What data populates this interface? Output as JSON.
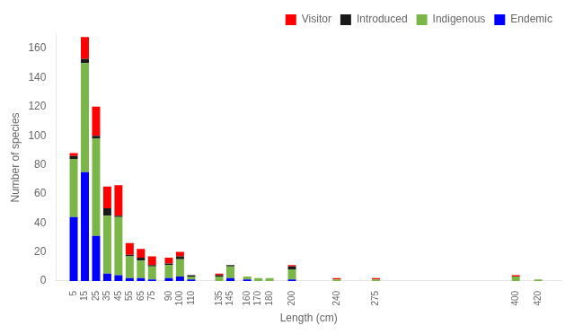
{
  "chart_data": {
    "type": "bar",
    "stacked": true,
    "x": [
      5,
      15,
      25,
      35,
      45,
      55,
      65,
      75,
      90,
      100,
      110,
      135,
      145,
      160,
      170,
      180,
      200,
      240,
      275,
      400,
      420
    ],
    "series": [
      {
        "name": "Endemic",
        "color": "#0000ff",
        "values": [
          44,
          75,
          31,
          5,
          4,
          2,
          2,
          1,
          2,
          3,
          1,
          0,
          2,
          1,
          0,
          0,
          1,
          0,
          0,
          0,
          0
        ]
      },
      {
        "name": "Indigenous",
        "color": "#7ab648",
        "values": [
          40,
          75,
          67,
          40,
          40,
          15,
          12,
          9,
          9,
          12,
          2,
          3,
          8,
          2,
          2,
          2,
          7,
          1,
          1,
          3,
          1
        ]
      },
      {
        "name": "Introduced",
        "color": "#1a1a1a",
        "values": [
          2,
          3,
          2,
          5,
          1,
          1,
          2,
          1,
          1,
          2,
          1,
          1,
          1,
          0,
          0,
          0,
          2,
          0,
          0,
          0,
          0
        ]
      },
      {
        "name": "Visitor",
        "color": "#ff0000",
        "values": [
          2,
          15,
          20,
          15,
          21,
          8,
          6,
          6,
          4,
          3,
          0,
          1,
          0,
          0,
          0,
          0,
          1,
          1,
          1,
          1,
          0
        ]
      }
    ],
    "xlabel": "Length (cm)",
    "ylabel": "Number of species",
    "xlim": [
      0,
      430
    ],
    "xticks": [
      5,
      15,
      25,
      35,
      45,
      55,
      65,
      75,
      90,
      100,
      110,
      135,
      145,
      160,
      170,
      180,
      200,
      240,
      275,
      400,
      420
    ],
    "ylim": [
      0,
      170
    ],
    "yticks": [
      0,
      20,
      40,
      60,
      80,
      100,
      120,
      140,
      160
    ],
    "grid": false,
    "legend": "upper right"
  }
}
